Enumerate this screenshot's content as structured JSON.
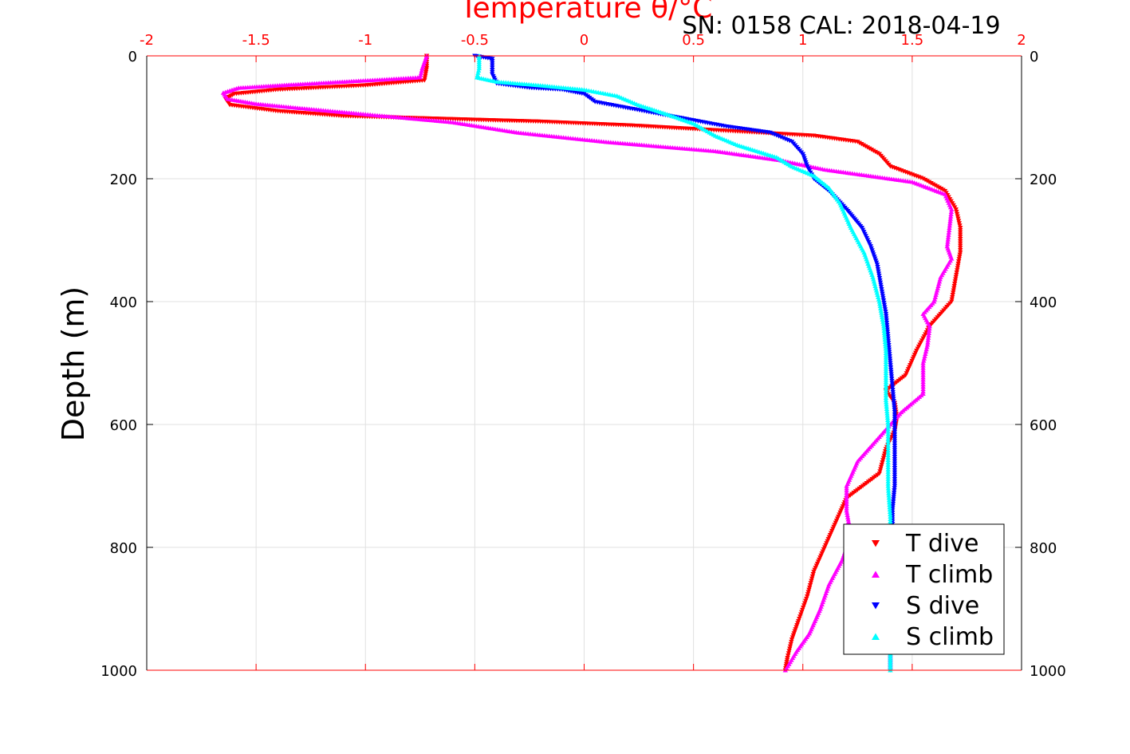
{
  "chart_data": {
    "type": "scatter",
    "title": "Temperature θ/°C",
    "subtitle": "SN: 0158  CAL: 2018-04-19",
    "xlabel": "Temperature θ/°C",
    "ylabel": "Depth (m)",
    "xlim": [
      -2,
      2
    ],
    "ylim": [
      0,
      1000
    ],
    "y_reversed": true,
    "x_axis_position": "top",
    "grid": true,
    "legend_position": "bottom-right",
    "x_ticks": [
      "-2",
      "-1.5",
      "-1",
      "-0.5",
      "0",
      "0.5",
      "1",
      "1.5",
      "2"
    ],
    "y_ticks": [
      "0",
      "200",
      "400",
      "600",
      "800",
      "1000"
    ],
    "colors": {
      "axis": "#ff0000",
      "title": "#ff0000",
      "grid": "#e0e0e0"
    },
    "series": [
      {
        "name": "T dive",
        "color": "#ff0000",
        "marker": "triangle-down",
        "points": [
          [
            -0.72,
            0
          ],
          [
            -0.72,
            20
          ],
          [
            -0.73,
            40
          ],
          [
            -1.0,
            48
          ],
          [
            -1.4,
            55
          ],
          [
            -1.6,
            62
          ],
          [
            -1.64,
            70
          ],
          [
            -1.62,
            80
          ],
          [
            -1.4,
            90
          ],
          [
            -1.1,
            98
          ],
          [
            -0.6,
            103
          ],
          [
            -0.2,
            107
          ],
          [
            0.2,
            113
          ],
          [
            0.55,
            120
          ],
          [
            0.8,
            125
          ],
          [
            1.05,
            130
          ],
          [
            1.25,
            140
          ],
          [
            1.35,
            160
          ],
          [
            1.4,
            180
          ],
          [
            1.55,
            200
          ],
          [
            1.65,
            220
          ],
          [
            1.7,
            250
          ],
          [
            1.72,
            280
          ],
          [
            1.72,
            320
          ],
          [
            1.7,
            360
          ],
          [
            1.68,
            400
          ],
          [
            1.58,
            440
          ],
          [
            1.52,
            480
          ],
          [
            1.47,
            520
          ],
          [
            1.38,
            545
          ],
          [
            1.42,
            565
          ],
          [
            1.43,
            590
          ],
          [
            1.42,
            610
          ],
          [
            1.38,
            640
          ],
          [
            1.35,
            680
          ],
          [
            1.2,
            720
          ],
          [
            1.15,
            760
          ],
          [
            1.1,
            800
          ],
          [
            1.05,
            840
          ],
          [
            1.02,
            880
          ],
          [
            0.98,
            920
          ],
          [
            0.95,
            950
          ],
          [
            0.93,
            980
          ],
          [
            0.92,
            1000
          ]
        ]
      },
      {
        "name": "T climb",
        "color": "#ff00ff",
        "marker": "triangle-up",
        "points": [
          [
            -0.72,
            0
          ],
          [
            -0.74,
            20
          ],
          [
            -0.75,
            35
          ],
          [
            -1.0,
            40
          ],
          [
            -1.35,
            47
          ],
          [
            -1.58,
            52
          ],
          [
            -1.65,
            60
          ],
          [
            -1.63,
            70
          ],
          [
            -1.5,
            78
          ],
          [
            -1.3,
            85
          ],
          [
            -1.0,
            95
          ],
          [
            -0.6,
            108
          ],
          [
            -0.3,
            125
          ],
          [
            0.1,
            140
          ],
          [
            0.6,
            155
          ],
          [
            0.9,
            170
          ],
          [
            1.1,
            185
          ],
          [
            1.3,
            195
          ],
          [
            1.5,
            205
          ],
          [
            1.65,
            225
          ],
          [
            1.68,
            250
          ],
          [
            1.67,
            280
          ],
          [
            1.66,
            310
          ],
          [
            1.68,
            330
          ],
          [
            1.63,
            360
          ],
          [
            1.6,
            400
          ],
          [
            1.55,
            420
          ],
          [
            1.58,
            440
          ],
          [
            1.57,
            470
          ],
          [
            1.55,
            500
          ],
          [
            1.55,
            550
          ],
          [
            1.45,
            580
          ],
          [
            1.35,
            620
          ],
          [
            1.25,
            660
          ],
          [
            1.2,
            700
          ],
          [
            1.2,
            740
          ],
          [
            1.22,
            780
          ],
          [
            1.18,
            820
          ],
          [
            1.12,
            860
          ],
          [
            1.08,
            900
          ],
          [
            1.03,
            940
          ],
          [
            0.97,
            970
          ],
          [
            0.92,
            1000
          ]
        ]
      },
      {
        "name": "S dive",
        "color": "#0000ff",
        "marker": "triangle-down",
        "points": [
          [
            -0.5,
            0
          ],
          [
            -0.42,
            5
          ],
          [
            -0.42,
            30
          ],
          [
            -0.4,
            45
          ],
          [
            -0.25,
            52
          ],
          [
            -0.1,
            55
          ],
          [
            0.0,
            62
          ],
          [
            0.05,
            75
          ],
          [
            0.2,
            85
          ],
          [
            0.35,
            95
          ],
          [
            0.5,
            105
          ],
          [
            0.65,
            115
          ],
          [
            0.85,
            125
          ],
          [
            0.95,
            140
          ],
          [
            1.0,
            160
          ],
          [
            1.02,
            180
          ],
          [
            1.05,
            200
          ],
          [
            1.12,
            220
          ],
          [
            1.2,
            250
          ],
          [
            1.27,
            280
          ],
          [
            1.31,
            310
          ],
          [
            1.34,
            340
          ],
          [
            1.36,
            380
          ],
          [
            1.38,
            420
          ],
          [
            1.39,
            460
          ],
          [
            1.4,
            500
          ],
          [
            1.41,
            540
          ],
          [
            1.42,
            580
          ],
          [
            1.42,
            620
          ],
          [
            1.42,
            660
          ],
          [
            1.42,
            700
          ],
          [
            1.41,
            740
          ],
          [
            1.41,
            780
          ],
          [
            1.4,
            820
          ],
          [
            1.4,
            900
          ],
          [
            1.4,
            1000
          ]
        ]
      },
      {
        "name": "S climb",
        "color": "#00ffff",
        "marker": "triangle-up",
        "points": [
          [
            -0.48,
            0
          ],
          [
            -0.48,
            20
          ],
          [
            -0.49,
            35
          ],
          [
            -0.4,
            42
          ],
          [
            -0.2,
            48
          ],
          [
            0.0,
            55
          ],
          [
            0.15,
            65
          ],
          [
            0.25,
            80
          ],
          [
            0.38,
            95
          ],
          [
            0.5,
            110
          ],
          [
            0.6,
            130
          ],
          [
            0.7,
            145
          ],
          [
            0.88,
            165
          ],
          [
            0.95,
            180
          ],
          [
            1.05,
            195
          ],
          [
            1.12,
            215
          ],
          [
            1.17,
            240
          ],
          [
            1.22,
            280
          ],
          [
            1.28,
            320
          ],
          [
            1.32,
            360
          ],
          [
            1.35,
            400
          ],
          [
            1.37,
            440
          ],
          [
            1.38,
            480
          ],
          [
            1.38,
            520
          ],
          [
            1.38,
            560
          ],
          [
            1.39,
            600
          ],
          [
            1.39,
            650
          ],
          [
            1.39,
            700
          ],
          [
            1.4,
            750
          ],
          [
            1.4,
            800
          ],
          [
            1.4,
            900
          ],
          [
            1.4,
            1000
          ]
        ]
      }
    ]
  }
}
